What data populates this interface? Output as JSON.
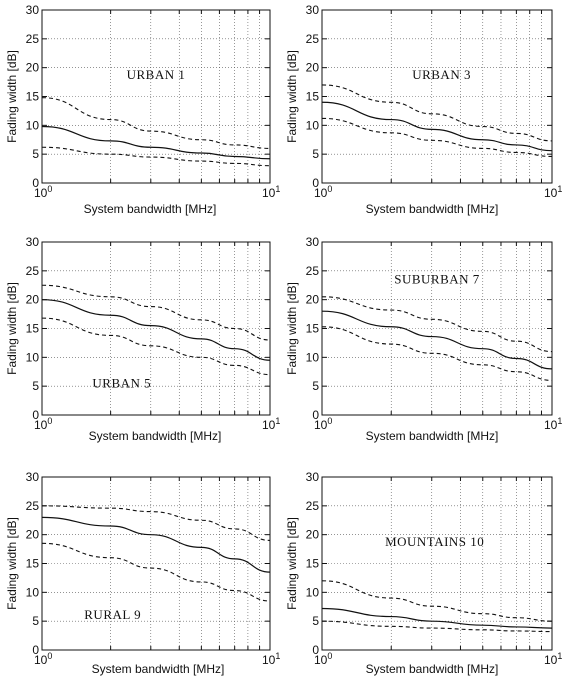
{
  "chart_data": [
    {
      "type": "line",
      "title": "URBAN 1",
      "xlabel": "System bandwidth [MHz]",
      "ylabel": "Fading width [dB]",
      "xscale": "log",
      "xlim": [
        1,
        10
      ],
      "ylim": [
        0,
        30
      ],
      "yticks": [
        0,
        5,
        10,
        15,
        20,
        25,
        30
      ],
      "xticks": [
        {
          "base": "10",
          "exp": "0"
        },
        {
          "base": "10",
          "exp": "1"
        }
      ],
      "grid": true,
      "x": [
        1,
        2,
        3,
        5,
        7,
        10
      ],
      "series": [
        {
          "style": "dashed",
          "values": [
            14.8,
            11.0,
            9.0,
            7.5,
            6.6,
            6.0
          ]
        },
        {
          "style": "solid",
          "values": [
            9.8,
            7.3,
            6.2,
            5.2,
            4.6,
            4.2
          ]
        },
        {
          "style": "dashed",
          "values": [
            6.2,
            5.0,
            4.5,
            3.8,
            3.4,
            3.0
          ]
        }
      ]
    },
    {
      "type": "line",
      "title": "URBAN 3",
      "xlabel": "System bandwidth [MHz]",
      "ylabel": "Fading width [dB]",
      "xscale": "log",
      "xlim": [
        1,
        10
      ],
      "ylim": [
        0,
        30
      ],
      "yticks": [
        0,
        5,
        10,
        15,
        20,
        25,
        30
      ],
      "xticks": [
        {
          "base": "10",
          "exp": "0"
        },
        {
          "base": "10",
          "exp": "1"
        }
      ],
      "grid": true,
      "x": [
        1,
        2,
        3,
        5,
        7,
        10
      ],
      "series": [
        {
          "style": "dashed",
          "values": [
            17.0,
            14.0,
            12.0,
            9.8,
            8.6,
            7.3
          ]
        },
        {
          "style": "solid",
          "values": [
            14.0,
            11.0,
            9.3,
            7.5,
            6.6,
            5.6
          ]
        },
        {
          "style": "dashed",
          "values": [
            11.2,
            8.7,
            7.4,
            6.0,
            5.3,
            4.6
          ]
        }
      ]
    },
    {
      "type": "line",
      "title": "URBAN 5",
      "xlabel": "System bandwidth [MHz]",
      "ylabel": "Fading width [dB]",
      "xscale": "log",
      "xlim": [
        1,
        10
      ],
      "ylim": [
        0,
        30
      ],
      "yticks": [
        0,
        5,
        10,
        15,
        20,
        25,
        30
      ],
      "xticks": [
        {
          "base": "10",
          "exp": "0"
        },
        {
          "base": "10",
          "exp": "1"
        }
      ],
      "grid": true,
      "x": [
        1,
        2,
        3,
        5,
        7,
        10
      ],
      "series": [
        {
          "style": "dashed",
          "values": [
            22.5,
            20.5,
            18.8,
            16.5,
            15.0,
            13.0
          ]
        },
        {
          "style": "solid",
          "values": [
            20.0,
            17.3,
            15.5,
            13.2,
            11.5,
            9.5
          ]
        },
        {
          "style": "dashed",
          "values": [
            16.8,
            13.8,
            12.0,
            10.0,
            8.6,
            7.0
          ]
        }
      ]
    },
    {
      "type": "line",
      "title": "SUBURBAN 7",
      "xlabel": "System bandwidth [MHz]",
      "ylabel": "Fading width [dB]",
      "xscale": "log",
      "xlim": [
        1,
        10
      ],
      "ylim": [
        0,
        30
      ],
      "yticks": [
        0,
        5,
        10,
        15,
        20,
        25,
        30
      ],
      "xticks": [
        {
          "base": "10",
          "exp": "0"
        },
        {
          "base": "10",
          "exp": "1"
        }
      ],
      "grid": true,
      "x": [
        1,
        2,
        3,
        5,
        7,
        10
      ],
      "series": [
        {
          "style": "dashed",
          "values": [
            20.5,
            18.2,
            16.6,
            14.5,
            12.8,
            11.0
          ]
        },
        {
          "style": "solid",
          "values": [
            18.0,
            15.3,
            13.6,
            11.5,
            9.8,
            8.0
          ]
        },
        {
          "style": "dashed",
          "values": [
            15.3,
            12.3,
            10.7,
            8.7,
            7.5,
            6.0
          ]
        }
      ]
    },
    {
      "type": "line",
      "title": "RURAL 9",
      "xlabel": "System bandwidth [MHz]",
      "ylabel": "Fading width [dB]",
      "xscale": "log",
      "xlim": [
        1,
        10
      ],
      "ylim": [
        0,
        30
      ],
      "yticks": [
        0,
        5,
        10,
        15,
        20,
        25,
        30
      ],
      "xticks": [
        {
          "base": "10",
          "exp": "0"
        },
        {
          "base": "10",
          "exp": "1"
        }
      ],
      "grid": true,
      "x": [
        1,
        2,
        3,
        5,
        7,
        10
      ],
      "series": [
        {
          "style": "dashed",
          "values": [
            25.0,
            24.6,
            24.0,
            22.5,
            21.0,
            19.0
          ]
        },
        {
          "style": "solid",
          "values": [
            23.0,
            21.5,
            20.0,
            17.8,
            15.8,
            13.5
          ]
        },
        {
          "style": "dashed",
          "values": [
            18.5,
            16.0,
            14.2,
            11.8,
            10.3,
            8.5
          ]
        }
      ]
    },
    {
      "type": "line",
      "title": "MOUNTAINS 10",
      "xlabel": "System bandwidth [MHz]",
      "ylabel": "Fading width [dB]",
      "xscale": "log",
      "xlim": [
        1,
        10
      ],
      "ylim": [
        0,
        30
      ],
      "yticks": [
        0,
        5,
        10,
        15,
        20,
        25,
        30
      ],
      "xticks": [
        {
          "base": "10",
          "exp": "0"
        },
        {
          "base": "10",
          "exp": "1"
        }
      ],
      "grid": true,
      "x": [
        1,
        2,
        3,
        5,
        7,
        10
      ],
      "series": [
        {
          "style": "dashed",
          "values": [
            12.0,
            9.0,
            7.6,
            6.3,
            5.6,
            5.0
          ]
        },
        {
          "style": "solid",
          "values": [
            7.2,
            5.8,
            5.0,
            4.3,
            4.0,
            3.8
          ]
        },
        {
          "style": "dashed",
          "values": [
            5.0,
            4.1,
            3.8,
            3.5,
            3.3,
            3.2
          ]
        }
      ]
    }
  ]
}
